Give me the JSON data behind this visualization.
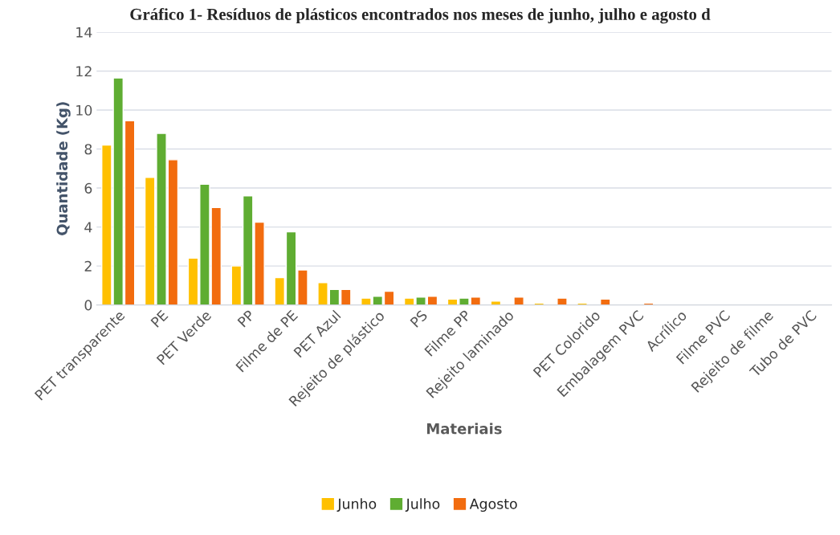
{
  "chart_data": {
    "type": "bar",
    "title": "Gráfico 1- Resíduos de plásticos encontrados nos meses de junho, julho e agosto d",
    "xlabel": "Materiais",
    "ylabel": "Quantidade (Kg)",
    "categories": [
      "PET transparente",
      "PE",
      "PET Verde",
      "PP",
      "Filme de PE",
      "PET Azul",
      "Rejeito de plástico",
      "PS",
      "Filme PP",
      "Rejeito laminado",
      null,
      "PET Colorido",
      "Embalagem PVC",
      "Acrílico",
      "Filme PVC",
      "Rejeito de filme",
      "Tubo de PVC"
    ],
    "series": [
      {
        "name": "Junho",
        "color": "#ffc000",
        "values": [
          8.2,
          6.55,
          2.4,
          2.0,
          1.4,
          1.15,
          0.35,
          0.35,
          0.3,
          0.2,
          0.1,
          0.1,
          null,
          null,
          null,
          null,
          null
        ]
      },
      {
        "name": "Julho",
        "color": "#5fad32",
        "values": [
          11.65,
          8.8,
          6.2,
          5.6,
          3.75,
          0.8,
          0.45,
          0.4,
          0.35,
          null,
          null,
          null,
          null,
          null,
          null,
          null,
          null
        ]
      },
      {
        "name": "Agosto",
        "color": "#f26c0f",
        "values": [
          9.45,
          7.45,
          5.0,
          4.25,
          1.8,
          0.8,
          0.7,
          0.45,
          0.4,
          0.4,
          0.35,
          0.3,
          0.1,
          null,
          null,
          null,
          null
        ]
      }
    ],
    "ylim": [
      0,
      14
    ],
    "yticks": [
      0,
      2,
      4,
      6,
      8,
      10,
      12,
      14
    ],
    "grid": "y",
    "legend": "bottom"
  }
}
